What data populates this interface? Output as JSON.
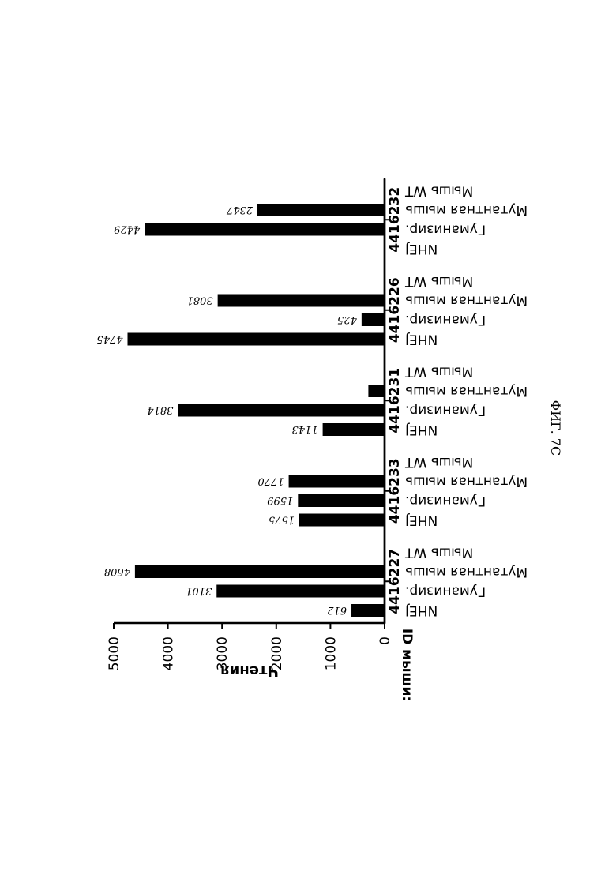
{
  "chart_data": {
    "type": "bar",
    "ylabel": "Чтения",
    "ylim": [
      0,
      5000
    ],
    "yticks": [
      "0",
      "1000",
      "2000",
      "3000",
      "4000",
      "5000"
    ],
    "xgroup_label": "ID мыши:",
    "categories": [
      "NHEJ",
      "Гуманизир.",
      "Мутантная мышь",
      "Мышь WT"
    ],
    "groups": [
      {
        "mouse_id": "4416227",
        "values": [
          612,
          3101,
          4608,
          null
        ],
        "labels": [
          "612",
          "3101",
          "4608",
          ""
        ]
      },
      {
        "mouse_id": "4416233",
        "values": [
          1575,
          1599,
          1770,
          null
        ],
        "labels": [
          "1575",
          "1599",
          "1770",
          ""
        ]
      },
      {
        "mouse_id": "4416231",
        "values": [
          1143,
          3814,
          300,
          null
        ],
        "labels": [
          "1143",
          "3814",
          "",
          ""
        ]
      },
      {
        "mouse_id": "4416226",
        "values": [
          4745,
          425,
          3081,
          null
        ],
        "labels": [
          "4745",
          "425",
          "3081",
          ""
        ]
      },
      {
        "mouse_id": "4416232",
        "values": [
          null,
          4429,
          2347,
          null
        ],
        "labels": [
          "",
          "4429",
          "2347",
          ""
        ]
      }
    ],
    "bar_color": "#000000"
  },
  "figure_label": "ФИГ. 7С"
}
